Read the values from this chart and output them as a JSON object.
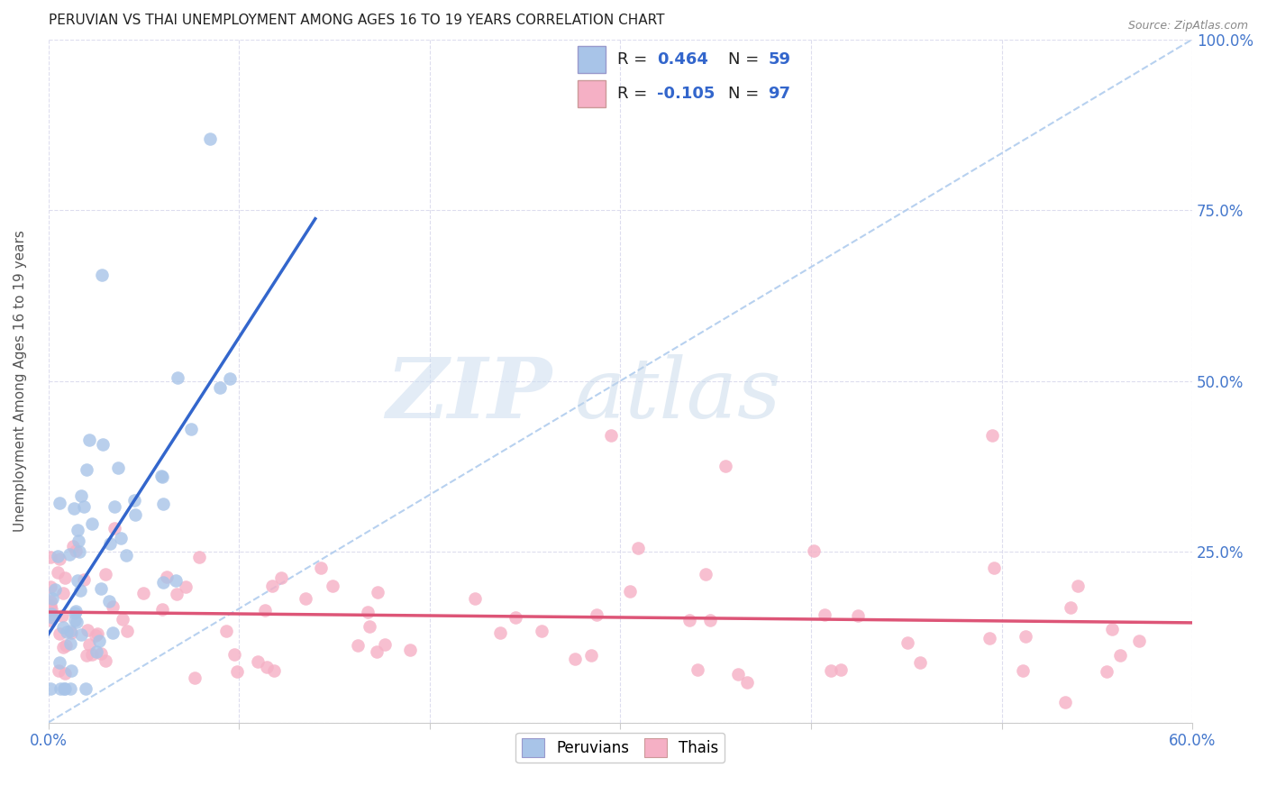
{
  "title": "PERUVIAN VS THAI UNEMPLOYMENT AMONG AGES 16 TO 19 YEARS CORRELATION CHART",
  "source": "Source: ZipAtlas.com",
  "ylabel": "Unemployment Among Ages 16 to 19 years",
  "xlim": [
    0.0,
    0.6
  ],
  "ylim": [
    0.0,
    1.0
  ],
  "peruvian_color": "#a8c4e8",
  "thai_color": "#f5b0c5",
  "peruvian_fill": "#a8c4e8",
  "thai_fill": "#f5b0c5",
  "trend_blue": "#3366cc",
  "trend_pink": "#dd5577",
  "diag_color": "#b0ccee",
  "peru_R": 0.464,
  "peru_N": 59,
  "thai_R": -0.105,
  "thai_N": 97,
  "legend_text_color": "#3366cc",
  "legend_R_label": "R = ",
  "legend_N_label": "N = "
}
